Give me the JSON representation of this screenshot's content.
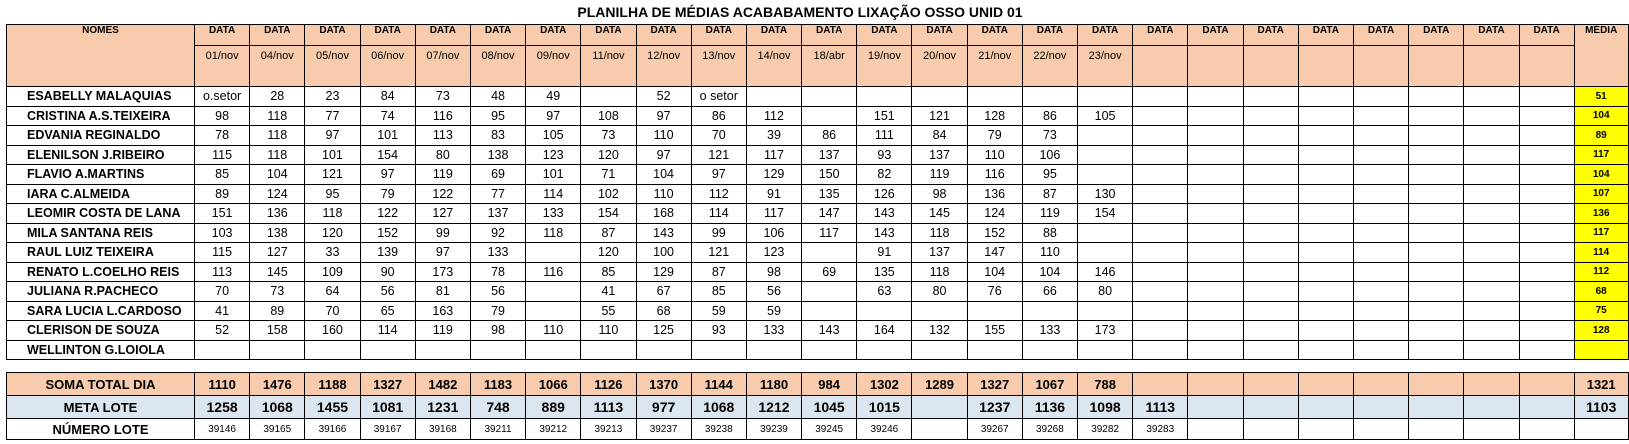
{
  "title": "PLANILHA DE MÉDIAS ACABABAMENTO LIXAÇÃO OSSO UNID 01",
  "header": {
    "nomes_label": "NOMES",
    "data_label": "DATA",
    "media_label": "MÉDIA",
    "dates": [
      "01/nov",
      "04/nov",
      "05/nov",
      "06/nov",
      "07/nov",
      "08/nov",
      "09/nov",
      "11/nov",
      "12/nov",
      "13/nov",
      "14/nov",
      "18/abr",
      "19/nov",
      "20/nov",
      "21/nov",
      "22/nov",
      "23/nov",
      "",
      "",
      "",
      "",
      "",
      "",
      "",
      ""
    ]
  },
  "rows": [
    {
      "name": "ESABELLY MALAQUIAS",
      "values": [
        "o.setor",
        "28",
        "23",
        "84",
        "73",
        "48",
        "49",
        "",
        "52",
        "o setor",
        "",
        "",
        "",
        "",
        "",
        "",
        "",
        "",
        "",
        "",
        "",
        "",
        "",
        "",
        ""
      ],
      "media": "51"
    },
    {
      "name": "CRISTINA A.S.TEIXEIRA",
      "values": [
        "98",
        "118",
        "77",
        "74",
        "116",
        "95",
        "97",
        "108",
        "97",
        "86",
        "112",
        "",
        "151",
        "121",
        "128",
        "86",
        "105",
        "",
        "",
        "",
        "",
        "",
        "",
        "",
        ""
      ],
      "media": "104"
    },
    {
      "name": "EDVANIA REGINALDO",
      "values": [
        "78",
        "118",
        "97",
        "101",
        "113",
        "83",
        "105",
        "73",
        "110",
        "70",
        "39",
        "86",
        "111",
        "84",
        "79",
        "73",
        "",
        "",
        "",
        "",
        "",
        "",
        "",
        "",
        ""
      ],
      "media": "89"
    },
    {
      "name": "ELENILSON J.RIBEIRO",
      "values": [
        "115",
        "118",
        "101",
        "154",
        "80",
        "138",
        "123",
        "120",
        "97",
        "121",
        "117",
        "137",
        "93",
        "137",
        "110",
        "106",
        "",
        "",
        "",
        "",
        "",
        "",
        "",
        "",
        ""
      ],
      "media": "117"
    },
    {
      "name": "FLAVIO A.MARTINS",
      "values": [
        "85",
        "104",
        "121",
        "97",
        "119",
        "69",
        "101",
        "71",
        "104",
        "97",
        "129",
        "150",
        "82",
        "119",
        "116",
        "95",
        "",
        "",
        "",
        "",
        "",
        "",
        "",
        "",
        ""
      ],
      "media": "104"
    },
    {
      "name": "IARA C.ALMEIDA",
      "values": [
        "89",
        "124",
        "95",
        "79",
        "122",
        "77",
        "114",
        "102",
        "110",
        "112",
        "91",
        "135",
        "126",
        "98",
        "136",
        "87",
        "130",
        "",
        "",
        "",
        "",
        "",
        "",
        "",
        ""
      ],
      "media": "107"
    },
    {
      "name": "LEOMIR COSTA DE LANA",
      "values": [
        "151",
        "136",
        "118",
        "122",
        "127",
        "137",
        "133",
        "154",
        "168",
        "114",
        "117",
        "147",
        "143",
        "145",
        "124",
        "119",
        "154",
        "",
        "",
        "",
        "",
        "",
        "",
        "",
        ""
      ],
      "media": "136"
    },
    {
      "name": "MILA SANTANA REIS",
      "values": [
        "103",
        "138",
        "120",
        "152",
        "99",
        "92",
        "118",
        "87",
        "143",
        "99",
        "106",
        "117",
        "143",
        "118",
        "152",
        "88",
        "",
        "",
        "",
        "",
        "",
        "",
        "",
        "",
        ""
      ],
      "media": "117"
    },
    {
      "name": "RAUL LUIZ TEIXEIRA",
      "values": [
        "115",
        "127",
        "33",
        "139",
        "97",
        "133",
        "",
        "120",
        "100",
        "121",
        "123",
        "",
        "91",
        "137",
        "147",
        "110",
        "",
        "",
        "",
        "",
        "",
        "",
        "",
        "",
        ""
      ],
      "media": "114"
    },
    {
      "name": "RENATO L.COELHO REIS",
      "values": [
        "113",
        "145",
        "109",
        "90",
        "173",
        "78",
        "116",
        "85",
        "129",
        "87",
        "98",
        "69",
        "135",
        "118",
        "104",
        "104",
        "146",
        "",
        "",
        "",
        "",
        "",
        "",
        "",
        ""
      ],
      "media": "112"
    },
    {
      "name": "JULIANA R.PACHECO",
      "values": [
        "70",
        "73",
        "64",
        "56",
        "81",
        "56",
        "",
        "41",
        "67",
        "85",
        "56",
        "",
        "63",
        "80",
        "76",
        "66",
        "80",
        "",
        "",
        "",
        "",
        "",
        "",
        "",
        ""
      ],
      "media": "68"
    },
    {
      "name": "SARA LUCIA L.CARDOSO",
      "values": [
        "41",
        "89",
        "70",
        "65",
        "163",
        "79",
        "",
        "55",
        "68",
        "59",
        "59",
        "",
        "",
        "",
        "",
        "",
        "",
        "",
        "",
        "",
        "",
        "",
        "",
        "",
        ""
      ],
      "media": "75"
    },
    {
      "name": "CLERISON DE SOUZA",
      "values": [
        "52",
        "158",
        "160",
        "114",
        "119",
        "98",
        "110",
        "110",
        "125",
        "93",
        "133",
        "143",
        "164",
        "132",
        "155",
        "133",
        "173",
        "",
        "",
        "",
        "",
        "",
        "",
        "",
        ""
      ],
      "media": "128"
    },
    {
      "name": "WELLINTON G.LOIOLA",
      "values": [
        "",
        "",
        "",
        "",
        "",
        "",
        "",
        "",
        "",
        "",
        "",
        "",
        "",
        "",
        "",
        "",
        "",
        "",
        "",
        "",
        "",
        "",
        "",
        "",
        ""
      ],
      "media": ""
    }
  ],
  "soma": {
    "label": "SOMA TOTAL DIA",
    "values": [
      "1110",
      "1476",
      "1188",
      "1327",
      "1482",
      "1183",
      "1066",
      "1126",
      "1370",
      "1144",
      "1180",
      "984",
      "1302",
      "1289",
      "1327",
      "1067",
      "788",
      "",
      "",
      "",
      "",
      "",
      "",
      "",
      ""
    ],
    "media": "1321"
  },
  "meta": {
    "label": "META LOTE",
    "values": [
      "1258",
      "1068",
      "1455",
      "1081",
      "1231",
      "748",
      "889",
      "1113",
      "977",
      "1068",
      "1212",
      "1045",
      "1015",
      "",
      "1237",
      "1136",
      "1098",
      "1113",
      "",
      "",
      "",
      "",
      "",
      "",
      ""
    ],
    "media": "1103"
  },
  "numero": {
    "label": "NÚMERO LOTE",
    "values": [
      "39146",
      "39165",
      "39166",
      "39167",
      "39168",
      "39211",
      "39212",
      "39213",
      "39237",
      "39238",
      "39239",
      "39245",
      "39246",
      "",
      "39267",
      "39268",
      "39282",
      "39283",
      "",
      "",
      "",
      "",
      "",
      "",
      ""
    ],
    "media": ""
  }
}
